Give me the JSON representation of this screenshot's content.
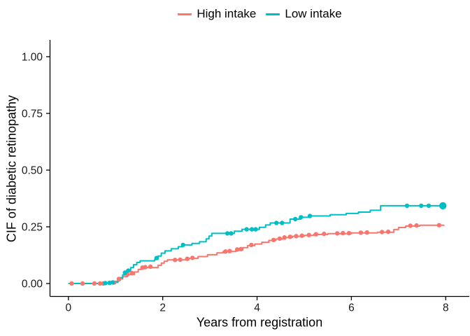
{
  "chart_data": {
    "type": "line",
    "subtype": "step-after-cumulative-incidence",
    "title": "",
    "xlabel": "Years from registration",
    "ylabel": "CIF of diabetic retinopathy",
    "xlim": [
      -0.39,
      8.5
    ],
    "ylim": [
      -0.057,
      1.074
    ],
    "xticks": [
      0,
      2,
      4,
      6,
      8
    ],
    "xtick_labels": [
      "0",
      "2",
      "4",
      "6",
      "8"
    ],
    "yticks": [
      0.0,
      0.25,
      0.5,
      0.75,
      1.0
    ],
    "ytick_labels": [
      "0.00",
      "0.25",
      "0.50",
      "0.75",
      "1.00"
    ],
    "grid": false,
    "legend_position": "top-center",
    "axis_color": "#000000",
    "tick_label_color": "#1a1a1a",
    "series": [
      {
        "name": "High intake",
        "color": "#F8766D",
        "marker_radius": 3.2,
        "steps": [
          [
            0,
            0
          ],
          [
            1.0,
            0.01
          ],
          [
            1.07,
            0.02
          ],
          [
            1.15,
            0.03
          ],
          [
            1.25,
            0.04
          ],
          [
            1.4,
            0.051
          ],
          [
            1.48,
            0.062
          ],
          [
            1.55,
            0.07
          ],
          [
            1.9,
            0.08
          ],
          [
            1.97,
            0.09
          ],
          [
            2.03,
            0.098
          ],
          [
            2.1,
            0.104
          ],
          [
            2.55,
            0.111
          ],
          [
            2.75,
            0.119
          ],
          [
            2.95,
            0.127
          ],
          [
            3.15,
            0.135
          ],
          [
            3.28,
            0.141
          ],
          [
            3.55,
            0.148
          ],
          [
            3.7,
            0.158
          ],
          [
            3.8,
            0.167
          ],
          [
            3.95,
            0.174
          ],
          [
            4.1,
            0.182
          ],
          [
            4.25,
            0.19
          ],
          [
            4.4,
            0.196
          ],
          [
            4.6,
            0.203
          ],
          [
            4.75,
            0.208
          ],
          [
            5.0,
            0.212
          ],
          [
            5.2,
            0.216
          ],
          [
            5.5,
            0.22
          ],
          [
            6.0,
            0.223
          ],
          [
            6.55,
            0.226
          ],
          [
            6.9,
            0.238
          ],
          [
            7.0,
            0.247
          ],
          [
            7.15,
            0.253
          ],
          [
            7.45,
            0.257
          ],
          [
            7.97,
            0.257
          ]
        ],
        "markers": [
          [
            0.07,
            0
          ],
          [
            0.3,
            0
          ],
          [
            0.55,
            0
          ],
          [
            0.67,
            0
          ],
          [
            0.74,
            0
          ],
          [
            0.96,
            0.004
          ],
          [
            1.07,
            0.02
          ],
          [
            1.25,
            0.04
          ],
          [
            1.35,
            0.046
          ],
          [
            1.57,
            0.07
          ],
          [
            1.63,
            0.072
          ],
          [
            1.74,
            0.074
          ],
          [
            2.26,
            0.104
          ],
          [
            2.37,
            0.105
          ],
          [
            2.52,
            0.109
          ],
          [
            2.63,
            0.113
          ],
          [
            3.33,
            0.141
          ],
          [
            3.42,
            0.143
          ],
          [
            3.58,
            0.15
          ],
          [
            3.66,
            0.152
          ],
          [
            3.88,
            0.17
          ],
          [
            4.35,
            0.192
          ],
          [
            4.48,
            0.198
          ],
          [
            4.58,
            0.203
          ],
          [
            4.7,
            0.206
          ],
          [
            4.83,
            0.209
          ],
          [
            4.95,
            0.211
          ],
          [
            5.1,
            0.214
          ],
          [
            5.25,
            0.217
          ],
          [
            5.42,
            0.219
          ],
          [
            5.7,
            0.221
          ],
          [
            5.82,
            0.222
          ],
          [
            5.95,
            0.222
          ],
          [
            6.2,
            0.224
          ],
          [
            6.33,
            0.225
          ],
          [
            6.65,
            0.227
          ],
          [
            6.78,
            0.228
          ],
          [
            7.25,
            0.255
          ],
          [
            7.38,
            0.256
          ],
          [
            7.86,
            0.257
          ]
        ]
      },
      {
        "name": "Low intake",
        "color": "#00BFC4",
        "marker_radius": 3.2,
        "steps": [
          [
            0,
            0
          ],
          [
            0.72,
            0.002
          ],
          [
            0.9,
            0.005
          ],
          [
            1.05,
            0.014
          ],
          [
            1.1,
            0.026
          ],
          [
            1.15,
            0.038
          ],
          [
            1.2,
            0.048
          ],
          [
            1.27,
            0.057
          ],
          [
            1.32,
            0.07
          ],
          [
            1.38,
            0.083
          ],
          [
            1.45,
            0.093
          ],
          [
            1.52,
            0.1
          ],
          [
            1.83,
            0.107
          ],
          [
            1.9,
            0.121
          ],
          [
            1.97,
            0.134
          ],
          [
            2.05,
            0.144
          ],
          [
            2.18,
            0.153
          ],
          [
            2.33,
            0.162
          ],
          [
            2.42,
            0.17
          ],
          [
            2.62,
            0.177
          ],
          [
            2.78,
            0.184
          ],
          [
            2.92,
            0.197
          ],
          [
            2.98,
            0.209
          ],
          [
            3.04,
            0.221
          ],
          [
            3.52,
            0.231
          ],
          [
            3.68,
            0.239
          ],
          [
            4.05,
            0.248
          ],
          [
            4.18,
            0.258
          ],
          [
            4.28,
            0.267
          ],
          [
            4.7,
            0.284
          ],
          [
            4.93,
            0.292
          ],
          [
            5.12,
            0.298
          ],
          [
            5.55,
            0.303
          ],
          [
            5.89,
            0.309
          ],
          [
            6.15,
            0.315
          ],
          [
            6.4,
            0.323
          ],
          [
            6.62,
            0.343
          ],
          [
            7.95,
            0.343
          ]
        ],
        "markers": [
          [
            0.78,
            0.002
          ],
          [
            0.87,
            0.003
          ],
          [
            0.94,
            0.005
          ],
          [
            1.2,
            0.048
          ],
          [
            1.27,
            0.057
          ],
          [
            1.87,
            0.112
          ],
          [
            2.43,
            0.17
          ],
          [
            3.37,
            0.221
          ],
          [
            3.45,
            0.221
          ],
          [
            3.78,
            0.239
          ],
          [
            3.89,
            0.239
          ],
          [
            3.97,
            0.239
          ],
          [
            4.41,
            0.267
          ],
          [
            4.53,
            0.267
          ],
          [
            4.81,
            0.284
          ],
          [
            4.93,
            0.292
          ],
          [
            5.12,
            0.298
          ],
          [
            7.18,
            0.343
          ],
          [
            7.48,
            0.343
          ],
          [
            7.64,
            0.343
          ]
        ],
        "end_marker": [
          7.94,
          0.343
        ],
        "end_marker_radius": 5.2
      }
    ]
  }
}
